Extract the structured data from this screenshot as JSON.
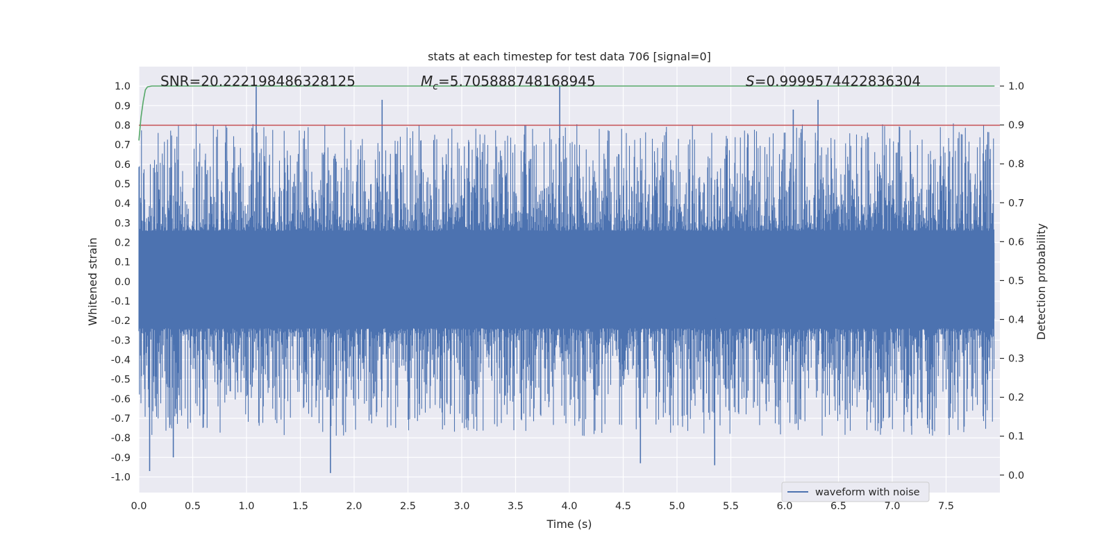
{
  "chart_data": {
    "type": "line",
    "title": "stats at each timestep for test data 706 [signal=0]",
    "xlabel": "Time (s)",
    "ylabel": "Whitened strain",
    "y2label": "Detection probability",
    "xlim": [
      0.0,
      8.0
    ],
    "ylim": [
      -1.08,
      1.1
    ],
    "y2lim": [
      -0.045,
      1.05
    ],
    "xticks": [
      "0.0",
      "0.5",
      "1.0",
      "1.5",
      "2.0",
      "2.5",
      "3.0",
      "3.5",
      "4.0",
      "4.5",
      "5.0",
      "5.5",
      "6.0",
      "6.5",
      "7.0",
      "7.5"
    ],
    "yticks": [
      "1.0",
      "0.9",
      "0.8",
      "0.7",
      "0.6",
      "0.5",
      "0.4",
      "0.3",
      "0.2",
      "0.1",
      "0.0",
      "-0.1",
      "-0.2",
      "-0.3",
      "-0.4",
      "-0.5",
      "-0.6",
      "-0.7",
      "-0.8",
      "-0.9",
      "-1.0"
    ],
    "y2ticks": [
      "1.0",
      "0.9",
      "0.8",
      "0.7",
      "0.6",
      "0.5",
      "0.4",
      "0.3",
      "0.2",
      "0.1",
      "0.0"
    ],
    "grid": true,
    "legend_position": "lower-right",
    "annotations": {
      "snr": "SNR=20.222198486328125",
      "mc_symbol": "M",
      "mc_sub": "c",
      "mc_value": "=5.705888748168945",
      "s_symbol": "S",
      "s_value": "=0.9999574422836304"
    },
    "series": [
      {
        "name": "waveform with noise",
        "axis": "left",
        "color": "#4c72b0",
        "note": "dense noise waveform spanning t=0 to 8 s",
        "peaks": [
          {
            "x": 1.09,
            "y": 1.0
          },
          {
            "x": 2.26,
            "y": 0.93
          },
          {
            "x": 3.91,
            "y": 1.0
          },
          {
            "x": 6.31,
            "y": 0.93
          },
          {
            "x": 6.08,
            "y": 0.88
          },
          {
            "x": 1.78,
            "y": -0.98
          },
          {
            "x": 0.1,
            "y": -0.97
          },
          {
            "x": 5.35,
            "y": -0.94
          },
          {
            "x": 4.66,
            "y": -0.93
          },
          {
            "x": 0.32,
            "y": -0.9
          }
        ]
      },
      {
        "name": "",
        "axis": "left",
        "color": "#c44e52",
        "x": [
          0.0,
          8.0
        ],
        "y": [
          0.8,
          0.8
        ]
      },
      {
        "name": "",
        "axis": "right",
        "color": "#55a868",
        "x": [
          0.0,
          0.02,
          0.04,
          0.06,
          0.08,
          0.12,
          0.5,
          1.0,
          2.0,
          4.0,
          6.0,
          7.95
        ],
        "y": [
          0.86,
          0.92,
          0.96,
          0.99,
          0.998,
          1.0,
          1.0,
          1.0,
          1.0,
          1.0,
          1.0,
          1.0
        ]
      }
    ]
  }
}
